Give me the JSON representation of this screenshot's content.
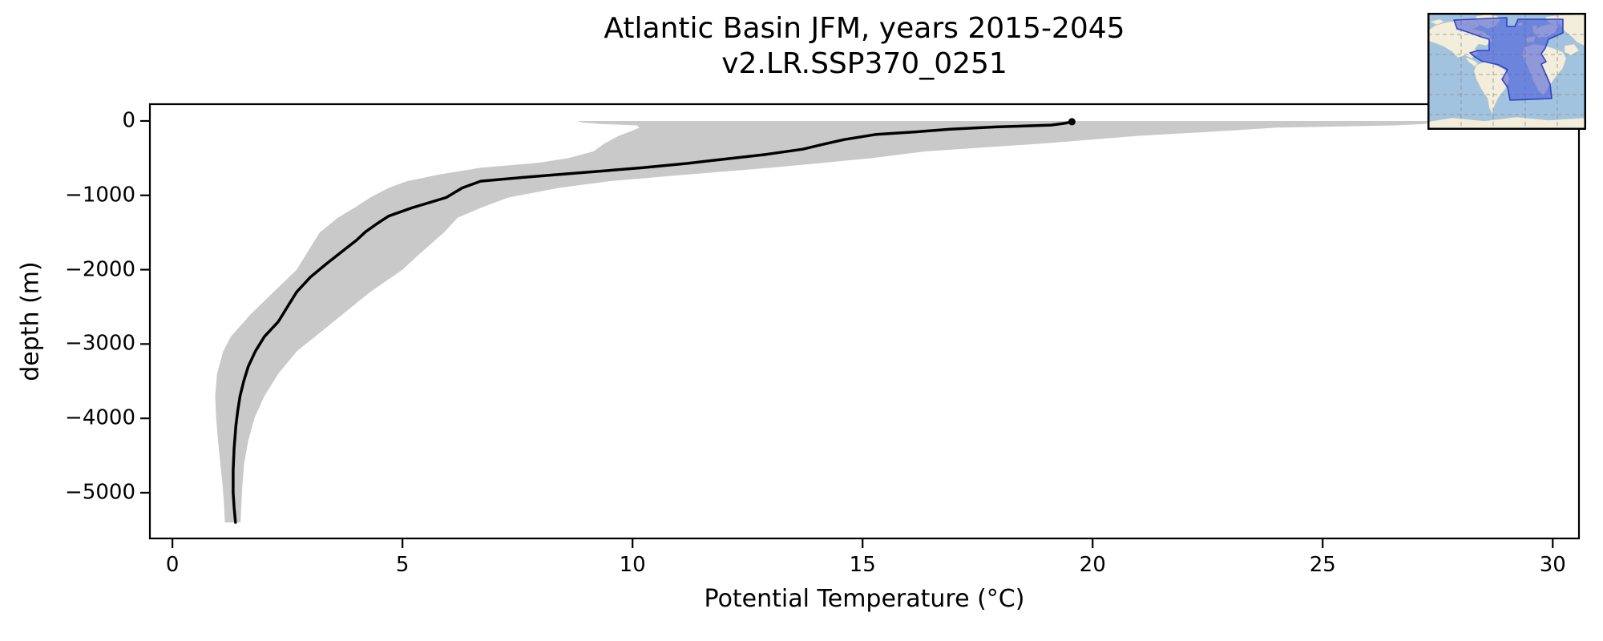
{
  "figure": {
    "title_line1": "Atlantic Basin JFM, years 2015-2045",
    "title_line2": "v2.LR.SSP370_0251",
    "xlabel": "Potential Temperature (°C)",
    "ylabel": "depth (m)"
  },
  "axes": {
    "x": {
      "min": -0.49,
      "max": 30.57,
      "ticks": [
        {
          "value": 0,
          "label": "0"
        },
        {
          "value": 5,
          "label": "5"
        },
        {
          "value": 10,
          "label": "10"
        },
        {
          "value": 15,
          "label": "15"
        },
        {
          "value": 20,
          "label": "20"
        },
        {
          "value": 25,
          "label": "25"
        },
        {
          "value": 30,
          "label": "30"
        }
      ]
    },
    "y": {
      "min": -5615,
      "max": 226,
      "ticks": [
        {
          "value": 0,
          "label": "0"
        },
        {
          "value": -1000,
          "label": "−1000"
        },
        {
          "value": -2000,
          "label": "−2000"
        },
        {
          "value": -3000,
          "label": "−3000"
        },
        {
          "value": -4000,
          "label": "−4000"
        },
        {
          "value": -5000,
          "label": "−5000"
        }
      ]
    }
  },
  "chart_data": {
    "type": "line",
    "title": "Atlantic Basin JFM, years 2015-2045 — v2.LR.SSP370_0251",
    "xlabel": "Potential Temperature (°C)",
    "ylabel": "depth (m)",
    "xlim": [
      -0.49,
      30.57
    ],
    "ylim": [
      -5615,
      226
    ],
    "grid": false,
    "legend": "none",
    "series": [
      {
        "name": "basin-mean potential temperature profile",
        "style": "solid black line, ~3.5px, round cap dot at surface end",
        "depth_m": [
          -10,
          -30,
          -55,
          -80,
          -110,
          -145,
          -180,
          -250,
          -320,
          -380,
          -450,
          -520,
          -570,
          -630,
          -675,
          -720,
          -760,
          -810,
          -900,
          -1030,
          -1170,
          -1280,
          -1380,
          -1490,
          -1605,
          -1700,
          -1920,
          -2100,
          -2300,
          -2500,
          -2700,
          -2900,
          -3100,
          -3300,
          -3500,
          -3700,
          -3900,
          -4100,
          -4400,
          -4700,
          -5000,
          -5200,
          -5400
        ],
        "temperature_c": [
          19.55,
          19.4,
          19.1,
          17.9,
          16.9,
          16.2,
          15.3,
          14.6,
          14.1,
          13.7,
          12.9,
          11.9,
          11.2,
          10.2,
          9.3,
          8.4,
          7.6,
          6.7,
          6.3,
          5.95,
          5.2,
          4.7,
          4.45,
          4.2,
          4.0,
          3.8,
          3.35,
          3.0,
          2.7,
          2.5,
          2.3,
          2.0,
          1.8,
          1.65,
          1.55,
          1.47,
          1.42,
          1.38,
          1.34,
          1.32,
          1.32,
          1.34,
          1.37
        ]
      }
    ],
    "envelope": {
      "name": "min–max spread across basin (shaded)",
      "depth_m": [
        0,
        -20,
        -40,
        -60,
        -90,
        -130,
        -200,
        -300,
        -410,
        -500,
        -560,
        -630,
        -720,
        -810,
        -900,
        -1030,
        -1170,
        -1300,
        -1500,
        -1800,
        -2000,
        -2300,
        -2600,
        -2900,
        -3100,
        -3400,
        -3700,
        -4000,
        -4300,
        -4600,
        -4900,
        -5150,
        -5400
      ],
      "tmin_c": [
        8.8,
        8.9,
        9.3,
        10.1,
        10.15,
        10.0,
        9.7,
        9.4,
        9.15,
        8.6,
        8.0,
        6.7,
        5.8,
        5.1,
        4.7,
        4.3,
        3.95,
        3.6,
        3.2,
        2.9,
        2.7,
        2.2,
        1.7,
        1.27,
        1.1,
        0.97,
        0.93,
        0.95,
        0.99,
        1.04,
        1.09,
        1.12,
        1.14
      ],
      "tmax_c": [
        27.5,
        27.4,
        27.2,
        26.6,
        24.0,
        23.0,
        21.0,
        19.0,
        16.35,
        15.2,
        14.2,
        13.0,
        11.2,
        9.5,
        8.4,
        7.3,
        6.7,
        6.2,
        5.9,
        5.35,
        5.0,
        4.3,
        3.7,
        3.1,
        2.7,
        2.3,
        2.0,
        1.78,
        1.65,
        1.56,
        1.52,
        1.5,
        1.48
      ]
    },
    "colors": {
      "mean_line": "#000000",
      "envelope_fill": "#c9c9c9",
      "axes_frame": "#000000",
      "background": "#ffffff"
    }
  },
  "inset_map": {
    "description": "World map inset with Atlantic basin region highlighted",
    "colors": {
      "ocean": "#a2c3e0",
      "land": "#f2eedb",
      "highlight_fill": "#4052d8",
      "highlight_border": "#2638c0",
      "gridlines": "#8a8a8a",
      "border": "#000000"
    }
  }
}
